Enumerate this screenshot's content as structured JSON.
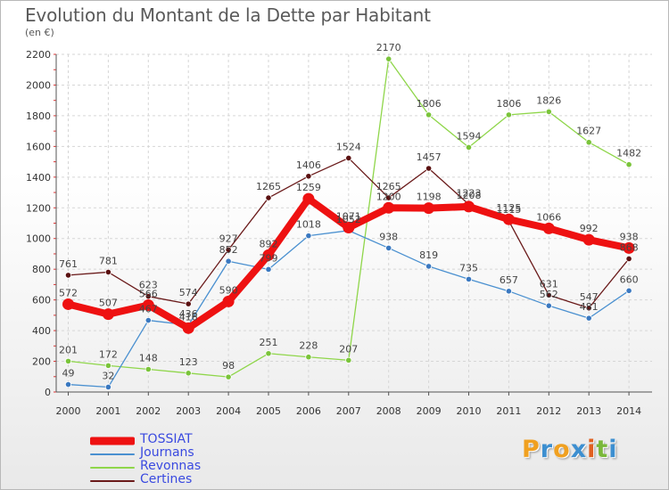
{
  "title": "Evolution du Montant de la Dette par Habitant",
  "subtitle": "(en €)",
  "logo": {
    "letters": [
      "P",
      "r",
      "o",
      "x",
      "i",
      "t",
      "i"
    ],
    "colors": [
      "#f0a020",
      "#3d8fd0",
      "#f0a020",
      "#3d8fd0",
      "#e06020",
      "#7ab83a",
      "#3d8fd0"
    ]
  },
  "legend": [
    {
      "name": "TOSSIAT",
      "color": "#ee1111"
    },
    {
      "name": "Journans",
      "color": "#4a90d0"
    },
    {
      "name": "Revonnas",
      "color": "#8fd64a"
    },
    {
      "name": "Certines",
      "color": "#6a1a1a"
    }
  ],
  "chart_data": {
    "type": "line",
    "x": [
      2000,
      2001,
      2002,
      2003,
      2004,
      2005,
      2006,
      2007,
      2008,
      2009,
      2010,
      2011,
      2012,
      2013,
      2014
    ],
    "ylim": [
      0,
      2200
    ],
    "yticks": [
      0,
      200,
      400,
      600,
      800,
      1000,
      1200,
      1400,
      1600,
      1800,
      2000,
      2200
    ],
    "grid": true,
    "legend_position": "bottom-left",
    "series": [
      {
        "name": "TOSSIAT",
        "color": "#ee1111",
        "marker": "#ee1111",
        "values": [
          572,
          507,
          566,
          416,
          590,
          892,
          1259,
          1071,
          1200,
          1198,
          1208,
          1125,
          1066,
          992,
          938
        ],
        "labels": [
          "572",
          "507",
          "566",
          "416",
          "590",
          "892",
          "1259",
          "1071",
          "1200",
          "1198",
          "1208",
          "1125",
          "1066",
          "992",
          "938"
        ]
      },
      {
        "name": "Journans",
        "color": "#4a90d0",
        "marker": "#3a78c0",
        "values": [
          49,
          32,
          467,
          436,
          852,
          799,
          1018,
          1052,
          938,
          819,
          735,
          657,
          562,
          481,
          660
        ],
        "labels": [
          "49",
          "32",
          "467",
          "436",
          "852",
          "799",
          "1018",
          "1052",
          "938",
          "819",
          "735",
          "657",
          "562",
          "481",
          "660"
        ]
      },
      {
        "name": "Revonnas",
        "color": "#8fd64a",
        "marker": "#7ac43a",
        "values": [
          201,
          172,
          148,
          123,
          98,
          251,
          228,
          207,
          2170,
          1806,
          1594,
          1806,
          1826,
          1627,
          1482
        ],
        "labels": [
          "201",
          "172",
          "148",
          "123",
          "98",
          "251",
          "228",
          "207",
          "2170",
          "1806",
          "1594",
          "1806",
          "1826",
          "1627",
          "1482"
        ]
      },
      {
        "name": "Certines",
        "color": "#6a1a1a",
        "marker": "#5a1010",
        "values": [
          761,
          781,
          623,
          574,
          927,
          1265,
          1406,
          1524,
          1265,
          1457,
          1223,
          1115,
          631,
          547,
          868
        ],
        "labels": [
          "761",
          "781",
          "623",
          "574",
          "927",
          "1265",
          "1406",
          "1524",
          "1265",
          "1457",
          "1223",
          "1115",
          "631",
          "547",
          "868"
        ]
      }
    ]
  }
}
